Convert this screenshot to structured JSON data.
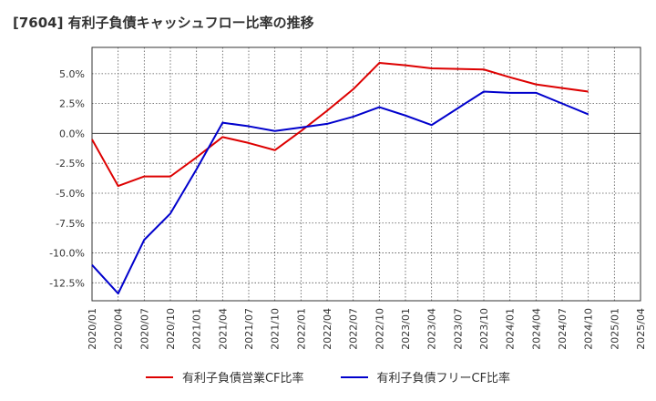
{
  "chart_data": {
    "type": "line",
    "title": "[7604]  有利子負債キャッシュフロー比率の推移",
    "xlabel": "",
    "ylabel": "",
    "categories": [
      "2020/01",
      "2020/04",
      "2020/07",
      "2020/10",
      "2021/01",
      "2021/04",
      "2021/07",
      "2021/10",
      "2022/01",
      "2022/04",
      "2022/07",
      "2022/10",
      "2023/01",
      "2023/04",
      "2023/07",
      "2023/10",
      "2024/01",
      "2024/04",
      "2024/07",
      "2024/10",
      "2025/01",
      "2025/04"
    ],
    "yticks": [
      "5.0%",
      "2.5%",
      "0.0%",
      "-2.5%",
      "-5.0%",
      "-7.5%",
      "-10.0%",
      "-12.5%"
    ],
    "ytick_values": [
      5.0,
      2.5,
      0.0,
      -2.5,
      -5.0,
      -7.5,
      -10.0,
      -12.5
    ],
    "ylim": [
      -14.0,
      7.2
    ],
    "grid": true,
    "legend_position": "bottom-center",
    "series": [
      {
        "name": "有利子負債営業CF比率",
        "color": "#dd0000",
        "values": [
          -0.5,
          -4.4,
          -3.6,
          -3.6,
          -2.0,
          -0.3,
          -0.8,
          -1.4,
          0.2,
          1.9,
          3.7,
          5.9,
          5.7,
          5.45,
          5.4,
          5.35,
          4.7,
          4.1,
          3.8,
          3.5,
          null,
          null
        ]
      },
      {
        "name": "有利子負債フリーCF比率",
        "color": "#0000cc",
        "values": [
          -11.0,
          -13.4,
          -8.9,
          -6.7,
          -3.0,
          0.9,
          0.6,
          0.2,
          0.5,
          0.8,
          1.4,
          2.2,
          1.5,
          0.7,
          2.1,
          3.5,
          3.4,
          3.4,
          2.5,
          1.6,
          null,
          null
        ]
      }
    ]
  }
}
